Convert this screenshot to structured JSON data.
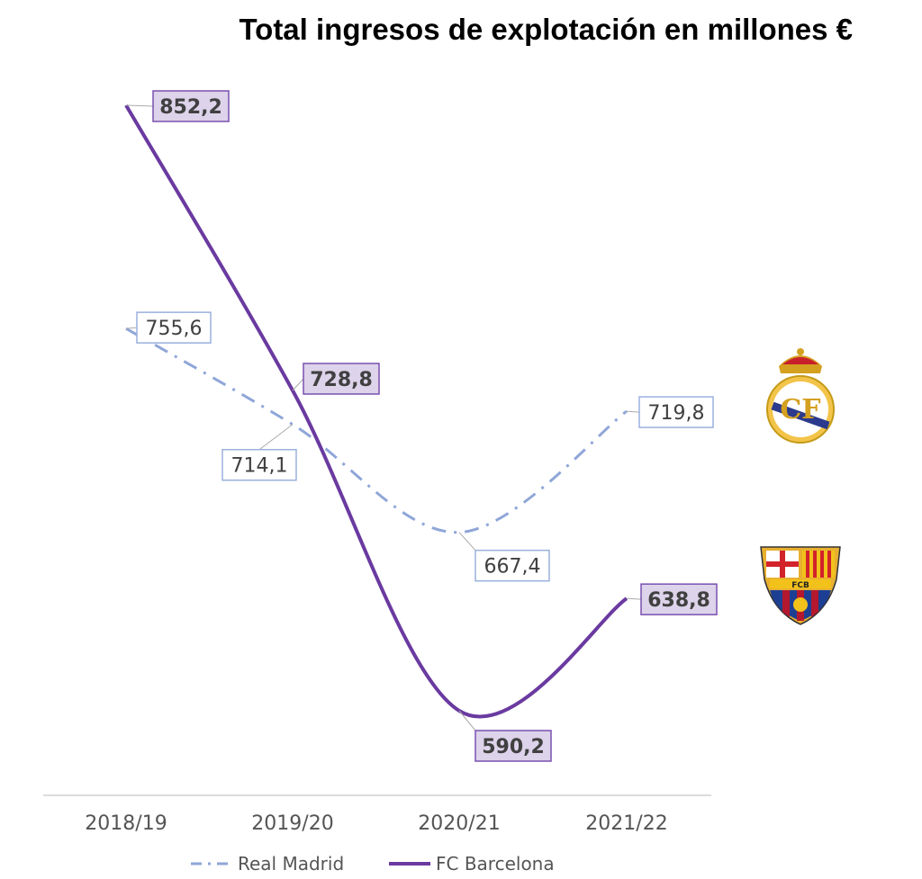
{
  "chart_data": {
    "type": "line",
    "title": "Total ingresos de explotación en millones €",
    "categories": [
      "2018/19",
      "2019/20",
      "2020/21",
      "2021/22"
    ],
    "series": [
      {
        "name": "Real Madrid",
        "values": [
          755.6,
          714.1,
          667.4,
          719.8
        ],
        "labels": [
          "755,6",
          "714,1",
          "667,4",
          "719,8"
        ],
        "color": "#8fa6d8",
        "style": "dash-dot"
      },
      {
        "name": "FC Barcelona",
        "values": [
          852.2,
          728.8,
          590.2,
          638.8
        ],
        "labels": [
          "852,2",
          "728,8",
          "590,2",
          "638,8"
        ],
        "color": "#6a3aa0",
        "style": "solid"
      }
    ],
    "ylim": [
      590.2,
      852.2
    ],
    "grid": false,
    "legend": "bottom",
    "xlabel": "",
    "ylabel": ""
  },
  "logos": {
    "madrid": "Real Madrid crest",
    "barcelona": "FCB"
  }
}
